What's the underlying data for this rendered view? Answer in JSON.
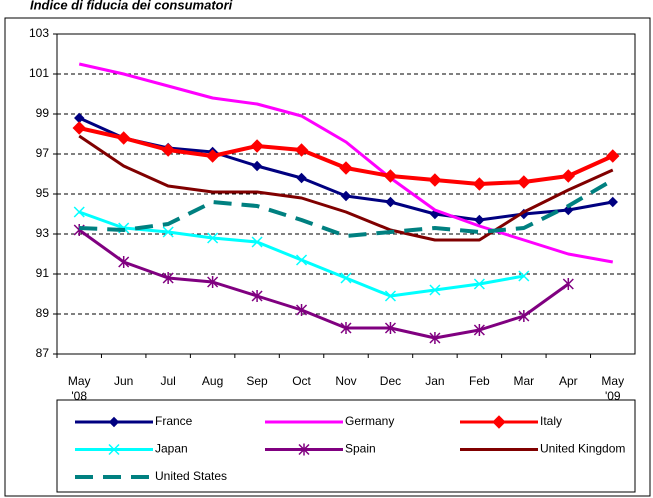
{
  "chart_data": {
    "type": "line",
    "title": "Indice di fiducia dei consumatori",
    "categories": [
      "May\n'08",
      "Jun",
      "Jul",
      "Aug",
      "Sep",
      "Oct",
      "Nov",
      "Dec",
      "Jan",
      "Feb",
      "Mar",
      "Apr",
      "May\n'09"
    ],
    "ylim": [
      87,
      103
    ],
    "yticks": [
      87,
      89,
      91,
      93,
      95,
      97,
      99,
      101,
      103
    ],
    "grid": true,
    "series": [
      {
        "name": "France",
        "color": "#000080",
        "marker": "diamond",
        "values": [
          98.8,
          97.8,
          97.3,
          97.1,
          96.4,
          95.8,
          94.9,
          94.6,
          94.0,
          93.7,
          94.0,
          94.2,
          94.6
        ]
      },
      {
        "name": "Germany",
        "color": "#ff00ff",
        "marker": "none",
        "values": [
          101.5,
          101.0,
          100.4,
          99.8,
          99.5,
          98.9,
          97.6,
          95.8,
          94.2,
          93.4,
          92.7,
          92.0,
          91.6
        ]
      },
      {
        "name": "Italy",
        "color": "#ff0000",
        "marker": "diamond",
        "values": [
          98.3,
          97.8,
          97.2,
          96.9,
          97.4,
          97.2,
          96.3,
          95.9,
          95.7,
          95.5,
          95.6,
          95.9,
          96.9
        ]
      },
      {
        "name": "Japan",
        "color": "#00ffff",
        "marker": "x",
        "values": [
          94.1,
          93.3,
          93.1,
          92.8,
          92.6,
          91.7,
          90.8,
          89.9,
          90.2,
          90.5,
          90.9,
          null,
          null
        ]
      },
      {
        "name": "Spain",
        "color": "#800080",
        "marker": "star",
        "values": [
          93.2,
          91.6,
          90.8,
          90.6,
          89.9,
          89.2,
          88.3,
          88.3,
          87.8,
          88.2,
          88.9,
          90.5,
          null
        ]
      },
      {
        "name": "United Kingdom",
        "color": "#800000",
        "marker": "none",
        "values": [
          97.9,
          96.4,
          95.4,
          95.1,
          95.1,
          94.8,
          94.1,
          93.2,
          92.7,
          92.7,
          94.1,
          95.2,
          96.2
        ]
      },
      {
        "name": "United States",
        "color": "#008080",
        "marker": "none",
        "dash": true,
        "values": [
          93.3,
          93.2,
          93.5,
          94.6,
          94.4,
          93.7,
          92.9,
          93.1,
          93.3,
          93.1,
          93.3,
          94.4,
          95.7
        ]
      }
    ]
  }
}
